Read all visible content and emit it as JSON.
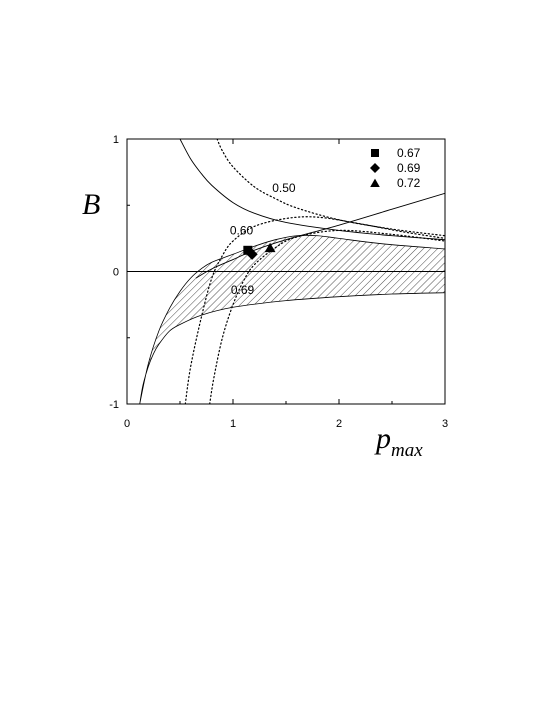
{
  "chart_data": {
    "type": "line",
    "xlabel": "p",
    "xlabel_sub": "max",
    "ylabel": "B",
    "xlim": [
      0,
      3
    ],
    "ylim": [
      -1,
      1
    ],
    "x_ticks": [
      0,
      1,
      2,
      3
    ],
    "x_tick_labels": [
      "0",
      "1",
      "2",
      "3"
    ],
    "y_ticks": [
      -1,
      0,
      1
    ],
    "y_tick_labels": [
      "-1",
      "0",
      "1"
    ],
    "grid": false,
    "zero_line": true,
    "allowed_region": {
      "description_visible": false,
      "lower": [
        [
          0.12,
          -1.0
        ],
        [
          0.15,
          -0.86
        ],
        [
          0.2,
          -0.72
        ],
        [
          0.25,
          -0.62
        ],
        [
          0.3,
          -0.55
        ],
        [
          0.4,
          -0.45
        ],
        [
          0.5,
          -0.4
        ],
        [
          0.7,
          -0.33
        ],
        [
          1.0,
          -0.27
        ],
        [
          1.5,
          -0.22
        ],
        [
          2.0,
          -0.19
        ],
        [
          2.5,
          -0.17
        ],
        [
          3.0,
          -0.16
        ]
      ],
      "upper": [
        [
          0.12,
          -1.0
        ],
        [
          0.2,
          -0.7
        ],
        [
          0.3,
          -0.45
        ],
        [
          0.4,
          -0.28
        ],
        [
          0.5,
          -0.15
        ],
        [
          0.6,
          -0.05
        ],
        [
          0.7,
          0.02
        ],
        [
          0.8,
          0.07
        ],
        [
          1.0,
          0.13
        ],
        [
          1.2,
          0.19
        ],
        [
          1.4,
          0.24
        ],
        [
          1.6,
          0.27
        ],
        [
          1.8,
          0.27
        ],
        [
          2.0,
          0.25
        ],
        [
          2.4,
          0.21
        ],
        [
          3.0,
          0.17
        ]
      ]
    },
    "solid_curves": [
      {
        "points": [
          [
            0.5,
            1.0
          ],
          [
            0.6,
            0.85
          ],
          [
            0.7,
            0.74
          ],
          [
            0.8,
            0.65
          ],
          [
            1.0,
            0.52
          ],
          [
            1.2,
            0.44
          ],
          [
            1.5,
            0.37
          ],
          [
            2.0,
            0.31
          ],
          [
            2.5,
            0.27
          ],
          [
            3.0,
            0.24
          ]
        ]
      },
      {
        "points": [
          [
            0.65,
            -0.05
          ],
          [
            0.8,
            0.02
          ],
          [
            1.0,
            0.09
          ],
          [
            1.2,
            0.16
          ],
          [
            1.5,
            0.24
          ],
          [
            2.0,
            0.35
          ],
          [
            2.5,
            0.47
          ],
          [
            3.0,
            0.59
          ]
        ]
      }
    ],
    "dotted_curves": [
      {
        "label": "0.50",
        "label_at": [
          1.37,
          0.6
        ],
        "points": [
          [
            0.85,
            1.0
          ],
          [
            0.9,
            0.91
          ],
          [
            1.0,
            0.79
          ],
          [
            1.2,
            0.64
          ],
          [
            1.4,
            0.55
          ],
          [
            1.6,
            0.48
          ],
          [
            2.0,
            0.39
          ],
          [
            2.5,
            0.32
          ],
          [
            3.0,
            0.27
          ]
        ]
      },
      {
        "label": "0.60",
        "label_at": [
          0.97,
          0.28
        ],
        "points": [
          [
            0.55,
            -1.0
          ],
          [
            0.6,
            -0.72
          ],
          [
            0.7,
            -0.35
          ],
          [
            0.8,
            -0.05
          ],
          [
            0.9,
            0.12
          ],
          [
            1.0,
            0.23
          ],
          [
            1.2,
            0.34
          ],
          [
            1.5,
            0.4
          ],
          [
            1.8,
            0.41
          ],
          [
            2.2,
            0.36
          ],
          [
            2.6,
            0.3
          ],
          [
            3.0,
            0.25
          ]
        ]
      },
      {
        "label": "0.69",
        "label_at": [
          0.98,
          -0.17
        ],
        "points": [
          [
            0.78,
            -1.0
          ],
          [
            0.82,
            -0.8
          ],
          [
            0.9,
            -0.5
          ],
          [
            1.0,
            -0.25
          ],
          [
            1.1,
            -0.07
          ],
          [
            1.2,
            0.05
          ],
          [
            1.4,
            0.18
          ],
          [
            1.6,
            0.26
          ],
          [
            2.0,
            0.31
          ],
          [
            2.5,
            0.28
          ],
          [
            3.0,
            0.23
          ]
        ]
      }
    ],
    "points": [
      {
        "label": "0.67",
        "marker": "square",
        "x": 1.14,
        "y": 0.16
      },
      {
        "label": "0.69",
        "marker": "diamond",
        "x": 1.18,
        "y": 0.13
      },
      {
        "label": "0.72",
        "marker": "triangle",
        "x": 1.35,
        "y": 0.18
      }
    ],
    "legend": {
      "placement": "top-right",
      "entries": [
        {
          "label": "0.67",
          "marker": "square"
        },
        {
          "label": "0.69",
          "marker": "diamond"
        },
        {
          "label": "0.72",
          "marker": "triangle"
        }
      ]
    }
  }
}
